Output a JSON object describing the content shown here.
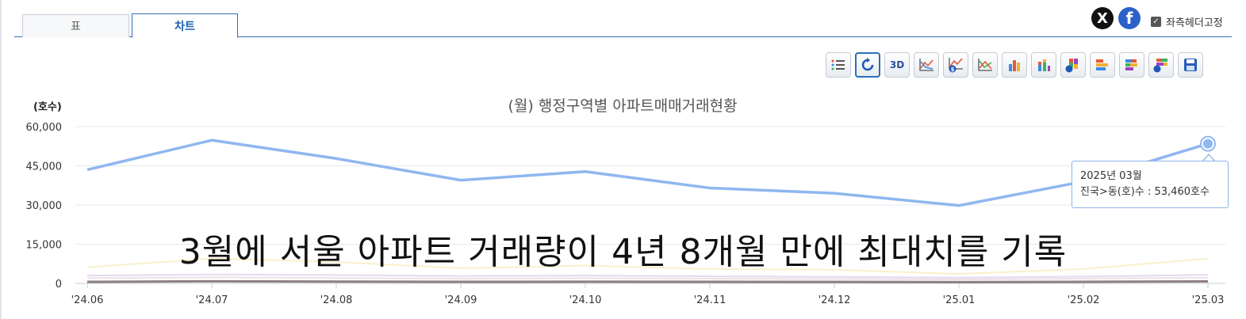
{
  "tabs": [
    {
      "label": "표",
      "active": false
    },
    {
      "label": "차트",
      "active": true
    }
  ],
  "share": {
    "x_label": "X",
    "facebook_label": "f"
  },
  "fix_header": {
    "label": "좌측헤더고정",
    "checked": true
  },
  "toolbar": {
    "three_d_label": "3D",
    "icons": [
      "list-icon",
      "refresh-icon",
      "3d-icon",
      "line-chart-icon",
      "line-chart-dollar-icon",
      "line-chart-alt-icon",
      "bar-chart-icon",
      "stacked-bar-icon",
      "stacked-bar-percent-icon",
      "horizontal-bar-icon",
      "horizontal-stacked-bar-icon",
      "horizontal-stacked-percent-icon",
      "save-icon"
    ]
  },
  "caption": "3월에 서울 아파트 거래량이 4년 8개월 만에 최대치를 기록",
  "tooltip": {
    "date": "2025년 03월",
    "series": "진국>동(호)수",
    "separator": " : ",
    "value": "53,460",
    "unit": "호수"
  },
  "chart_data": {
    "type": "line",
    "title": "(월) 행정구역별 아파트매매거래현황",
    "ylabel": "(호수)",
    "xlabel": "",
    "ylim": [
      0,
      60000
    ],
    "yticks": [
      0,
      15000,
      30000,
      45000,
      60000
    ],
    "ytick_labels": [
      "0",
      "15,000",
      "30,000",
      "45,000",
      "60,000"
    ],
    "grid": true,
    "categories": [
      "'24.06",
      "'24.07",
      "'24.08",
      "'24.09",
      "'24.10",
      "'24.11",
      "'24.12",
      "'25.01",
      "'25.02",
      "'25.03"
    ],
    "series": [
      {
        "values": [
          43500,
          54800,
          47800,
          39500,
          42800,
          36500,
          34500,
          29800,
          39000,
          53460
        ],
        "color": "#8fb7f0",
        "width": 3.5,
        "opacity": 1
      },
      {
        "values": [
          6200,
          9500,
          8200,
          5800,
          6800,
          5500,
          5200,
          3600,
          5500,
          9500
        ],
        "color": "#f5e7a6",
        "width": 2,
        "opacity": 0.6
      },
      {
        "values": [
          3000,
          3400,
          3200,
          2800,
          3000,
          2700,
          2500,
          2200,
          2600,
          3300
        ],
        "color": "#d8c9ea",
        "width": 2,
        "opacity": 0.7
      },
      {
        "values": [
          2000,
          2300,
          2100,
          1800,
          2000,
          1800,
          1700,
          1500,
          1800,
          2200
        ],
        "color": "#e6d3dd",
        "width": 2,
        "opacity": 0.7
      },
      {
        "values": [
          600,
          800,
          700,
          600,
          650,
          600,
          550,
          500,
          600,
          750
        ],
        "color": "#8e7f86",
        "width": 3,
        "opacity": 1
      }
    ],
    "highlight": {
      "series": 0,
      "index": 9,
      "color": "#8fb7f0"
    }
  }
}
